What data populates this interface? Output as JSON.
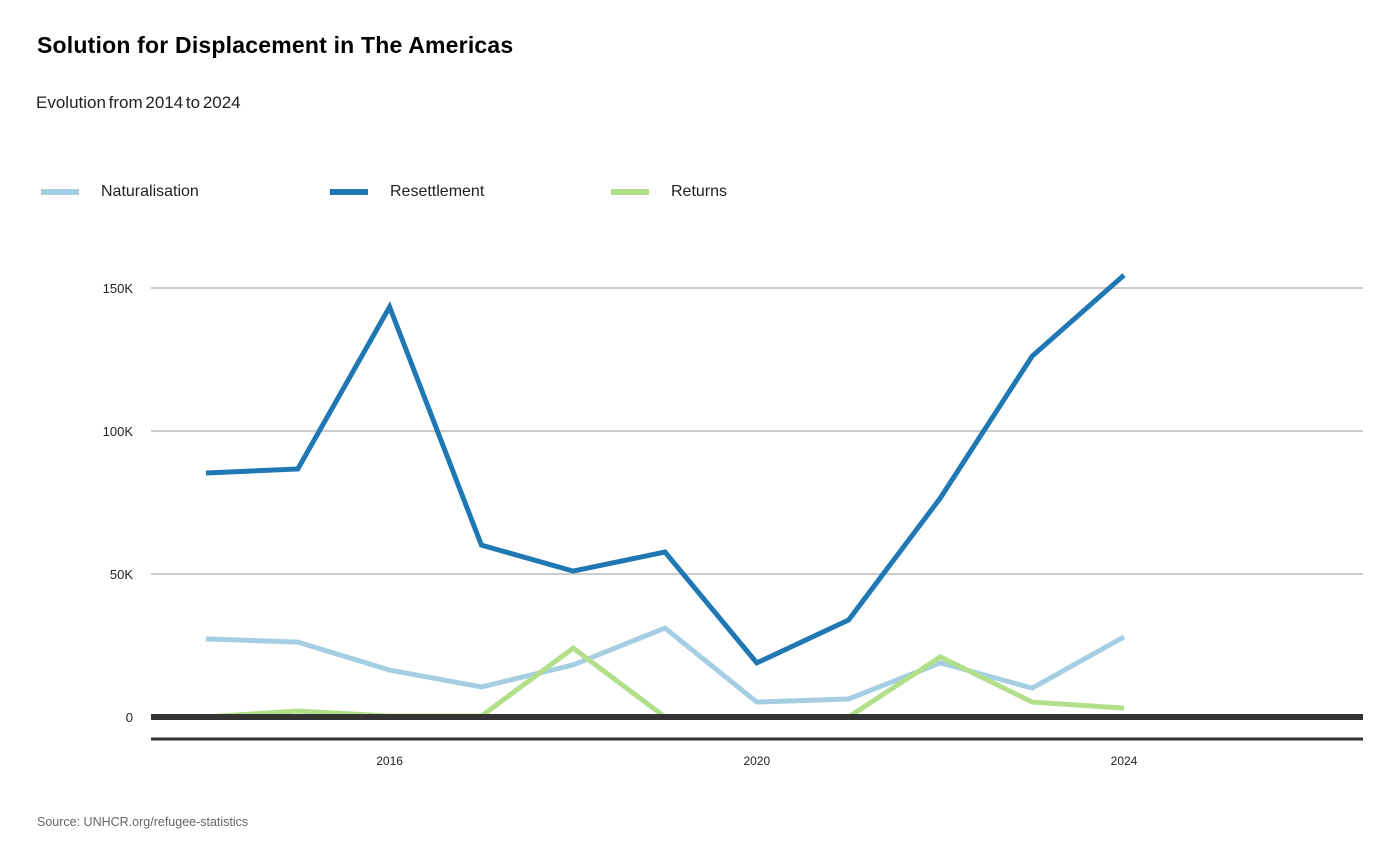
{
  "title": "Solution for Displacement in The Americas",
  "subtitle": "Evolution from 2014 to 2024",
  "source": "Source: UNHCR.org/refugee-statistics",
  "chart_data": {
    "type": "line",
    "title": "Solution for Displacement in The Americas",
    "subtitle": "Evolution from 2014 to 2024",
    "xlabel": "",
    "ylabel": "",
    "x": [
      2014,
      2015,
      2016,
      2017,
      2018,
      2019,
      2020,
      2021,
      2022,
      2023,
      2024
    ],
    "xlim": [
      2012.6,
      2026.2
    ],
    "x_ticks": [
      2016,
      2020,
      2024
    ],
    "x_tick_labels": [
      "2016",
      "2020",
      "2024"
    ],
    "ylim": [
      0,
      165000
    ],
    "y_ticks": [
      0,
      50000,
      100000,
      150000
    ],
    "y_tick_labels": [
      "0",
      "50K",
      "100K",
      "150K"
    ],
    "grid": "horizontal",
    "legend_position": "top-left",
    "series": [
      {
        "name": "Naturalisation",
        "color": "#a6cee3",
        "values": [
          27300,
          26200,
          16400,
          10500,
          18200,
          31100,
          5200,
          6300,
          18900,
          10100,
          28000
        ]
      },
      {
        "name": "Resettlement",
        "color": "#1f78b4",
        "values": [
          85300,
          86700,
          143400,
          60100,
          51000,
          57700,
          18900,
          33900,
          76600,
          126200,
          154500
        ]
      },
      {
        "name": "Returns",
        "color": "#b2df8a",
        "values": [
          0,
          2100,
          300,
          300,
          24100,
          0,
          0,
          0,
          21000,
          5200,
          3100
        ]
      }
    ]
  }
}
